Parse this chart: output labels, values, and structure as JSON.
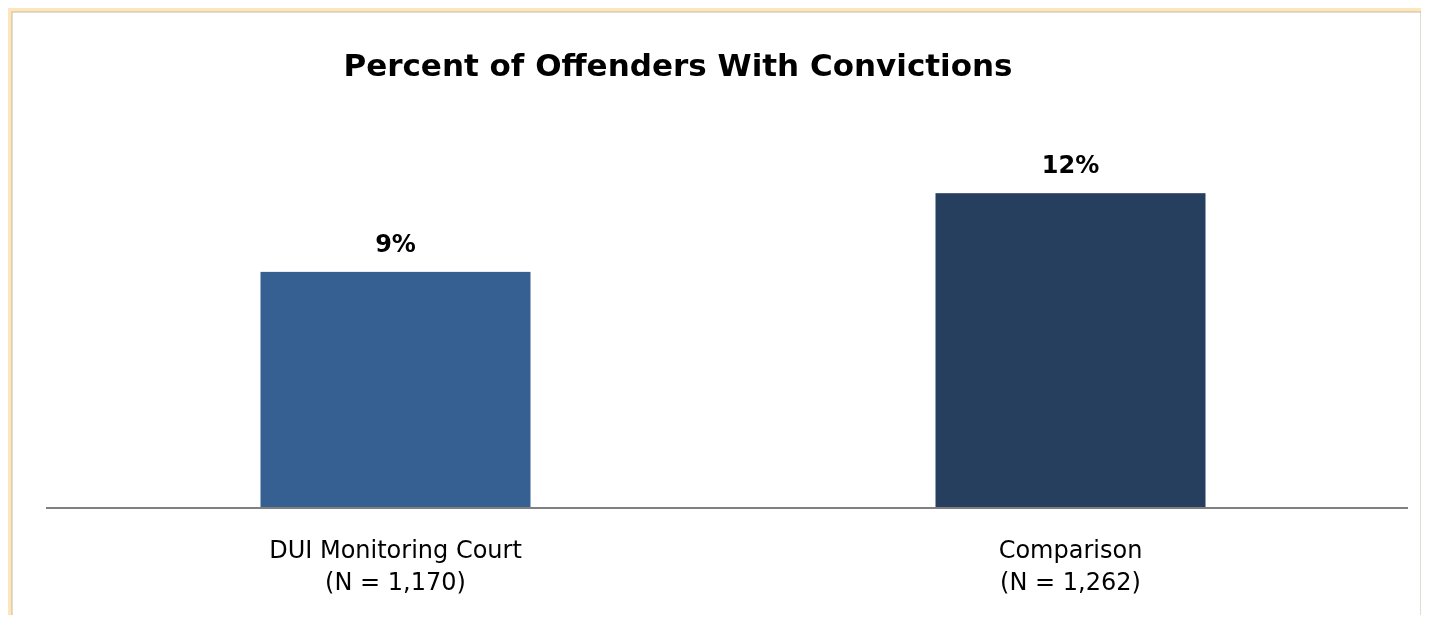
{
  "chart_data": {
    "type": "bar",
    "title": "Percent of Offenders With Convictions",
    "categories": [
      "DUI Monitoring Court\n(N = 1,170)",
      "Comparison\n(N = 1,262)"
    ],
    "values": [
      9,
      12
    ],
    "colors": [
      "#376092",
      "#263f5f"
    ],
    "value_labels": [
      "9%",
      "12%"
    ]
  }
}
